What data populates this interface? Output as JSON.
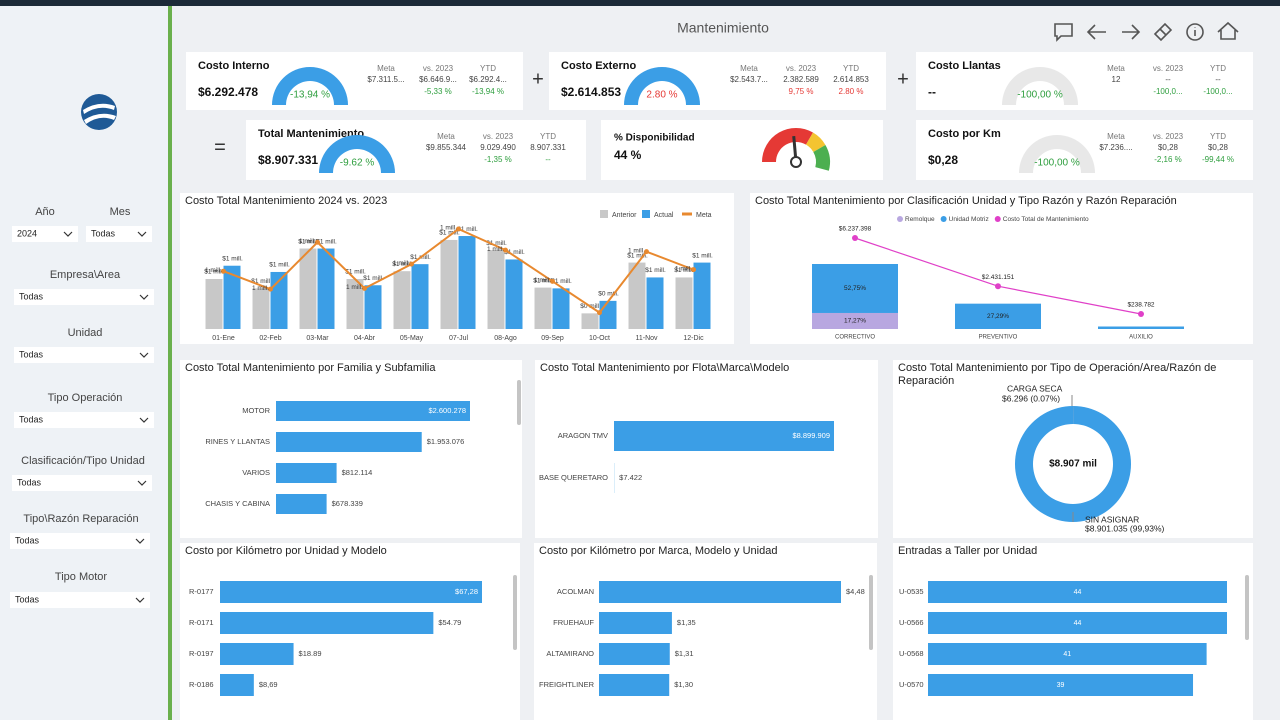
{
  "header": {
    "title": "Mantenimiento"
  },
  "filters": [
    {
      "label": "Año",
      "value": "2024"
    },
    {
      "label": "Mes",
      "value": "Todas"
    },
    {
      "label": "Empresa\\Area",
      "value": "Todas"
    },
    {
      "label": "Unidad",
      "value": "Todas"
    },
    {
      "label": "Tipo Operación",
      "value": "Todas"
    },
    {
      "label": "Clasificación/Tipo Unidad",
      "value": "Todas"
    },
    {
      "label": "Tipo\\Razón Reparación",
      "value": "Todas"
    },
    {
      "label": "Tipo Motor",
      "value": "Todas"
    }
  ],
  "kpi_columns": [
    "Meta",
    "vs. 2023",
    "YTD"
  ],
  "operators": [
    "+",
    "+",
    "="
  ],
  "kpis": [
    {
      "title": "Costo Interno",
      "value": "$6.292.478",
      "gauge": "-13,94 %",
      "gauge_color": "#3b9ee6",
      "color": "#2e9e3e",
      "meta": "$7.311.5...",
      "vs_2023": "$6.646.9...",
      "ytd": "$6.292.4...",
      "vs_2023_pct": "-5,33 %",
      "ytd_pct": "-13,94 %"
    },
    {
      "title": "Costo Externo",
      "value": "$2.614.853",
      "gauge": "2.80 %",
      "gauge_color": "#3b9ee6",
      "color": "#e53935",
      "meta": "$2.543.7...",
      "vs_2023": "2.382.589",
      "ytd": "2.614.853",
      "vs_2023_pct": "9,75 %",
      "ytd_pct": "2.80 %"
    },
    {
      "title": "Costo Llantas",
      "value": "--",
      "gauge": "-100,00 %",
      "gauge_color": "#e8e8e8",
      "color": "#2e9e3e",
      "meta": "12",
      "vs_2023": "--",
      "ytd": "--",
      "vs_2023_pct": "-100,0...",
      "ytd_pct": "-100,0..."
    },
    {
      "title": "Total Mantenimiento",
      "value": "$8.907.331",
      "gauge": "-9.62 %",
      "gauge_color": "#3b9ee6",
      "color": "#2e9e3e",
      "meta": "$9.855.344",
      "vs_2023": "9.029.490",
      "ytd": "8.907.331",
      "vs_2023_pct": "-1,35 %",
      "ytd_pct": "--"
    },
    {
      "title": "% Disponibilidad",
      "value": "44 %"
    },
    {
      "title": "Costo por Km",
      "value": "$0,28",
      "gauge": "-100,00 %",
      "gauge_color": "#e8e8e8",
      "color": "#2e9e3e",
      "meta": "$7.236....",
      "vs_2023": "$0,28",
      "ytd": "$0,28",
      "vs_2023_pct": "-2,16 %",
      "ytd_pct": "-99,44 %"
    }
  ],
  "chart_data": [
    {
      "type": "bar",
      "title": "Costo Total Mantenimiento 2024 vs. 2023",
      "categories": [
        "01-Ene",
        "02-Feb",
        "03-Mar",
        "04-Abr",
        "05-May",
        "07-Jul",
        "08-Ago",
        "09-Sep",
        "10-Oct",
        "11-Nov",
        "12-Dic"
      ],
      "series": [
        {
          "name": "Anterior",
          "color": "#c8c8c8",
          "values": [
            0.64,
            0.52,
            1.03,
            0.64,
            0.74,
            1.14,
            1.01,
            0.53,
            0.2,
            0.85,
            0.66
          ],
          "value_labels": [
            "$1 mill.",
            "$1 mill.",
            "$1 mill.",
            "$1 mill.",
            "$1 mill.",
            "$1 mill.",
            "$1 mill.",
            "$1 mill.",
            "$0 mill.",
            "$1 mill.",
            "$1 mill."
          ]
        },
        {
          "name": "Actual",
          "color": "#3b9ee6",
          "values": [
            0.81,
            0.73,
            1.03,
            0.56,
            0.83,
            1.19,
            0.89,
            0.52,
            0.36,
            0.66,
            0.85
          ],
          "value_labels": [
            "$1 mill.",
            "$1 mill.",
            "$1 mill.",
            "$1 mill.",
            "$1 mill.",
            "$1 mill.",
            "$1 mill.",
            "$1 mill.",
            "$0 mill.",
            "$1 mill.",
            "$1 mill."
          ]
        },
        {
          "name": "Meta",
          "type": "line",
          "color": "#e8892f",
          "values": [
            0.74,
            0.51,
            1.11,
            0.52,
            0.83,
            1.28,
            1.01,
            0.61,
            0.21,
            0.99,
            0.76
          ],
          "value_labels": [
            "1 mill.",
            "1 mill.",
            "1 mill.",
            "1 mill.",
            "1 mill.",
            "1 mill.",
            "1 mill.",
            "1 mill.",
            null,
            "1 mill.",
            "1 mill."
          ]
        }
      ]
    },
    {
      "type": "bar",
      "stacked": true,
      "title": "Costo Total Mantenimiento por Clasificación Unidad y Tipo Razón y Razón Reparación",
      "categories": [
        "CORRECTIVO",
        "PREVENTIVO",
        "AUXILIO"
      ],
      "series": [
        {
          "name": "Remolque",
          "color": "#b8a7e0",
          "values": [
            17.27,
            null,
            null
          ],
          "value_labels": [
            "17,27%",
            null,
            null
          ]
        },
        {
          "name": "Unidad Motriz",
          "color": "#3b9ee6",
          "values": [
            52.75,
            27.29,
            2.68
          ],
          "value_labels": [
            "52,75%",
            "27,29%",
            null
          ]
        },
        {
          "name": "Costo Total de Mantenimiento",
          "type": "line",
          "axis": "y2",
          "color": "#e040c8",
          "values": [
            6237398,
            2431151,
            238782
          ],
          "value_labels": [
            "$6.237.398",
            "$2.431.151",
            "$238.782"
          ]
        }
      ]
    },
    {
      "type": "bar",
      "horizontal": true,
      "title": "Costo Total Mantenimiento por Familia y Subfamilia",
      "color": "#3b9ee6",
      "categories": [
        "MOTOR",
        "RINES Y LLANTAS",
        "VARIOS",
        "CHASIS Y CABINA"
      ],
      "values": [
        2600278,
        1953076,
        812114,
        678339
      ],
      "value_labels": [
        "$2.600.278",
        "$1.953.076",
        "$812.114",
        "$678.339"
      ]
    },
    {
      "type": "bar",
      "horizontal": true,
      "title": "Costo Total Mantenimiento por Flota\\Marca\\Modelo",
      "color": "#3b9ee6",
      "categories": [
        "ARAGON TMV",
        "BASE QUERETARO"
      ],
      "values": [
        8899909,
        7422
      ],
      "value_labels": [
        "$8.899.909",
        "$7.422"
      ]
    },
    {
      "type": "pie",
      "donut": true,
      "title": "Costo Total Mantenimiento por Tipo de Operación/Area/Razón de Reparación",
      "categories": [
        "CARGA SECA",
        "SIN ASIGNAR"
      ],
      "values": [
        6296,
        8901035
      ],
      "value_labels": [
        "$6.296 (0.07%)",
        "$8.901.035 (99,93%)"
      ],
      "colors": [
        "#1a4f8a",
        "#3b9ee6"
      ],
      "center_label": "$8.907 mil"
    },
    {
      "type": "bar",
      "horizontal": true,
      "title": "Costo por Kilómetro por Unidad y Modelo",
      "color": "#3b9ee6",
      "categories": [
        "R-0177",
        "R-0171",
        "R-0197",
        "R-0186"
      ],
      "values": [
        67.28,
        54.79,
        18.89,
        8.69
      ],
      "value_labels": [
        "$67,28",
        "$54.79",
        "$18.89",
        "$8,69"
      ]
    },
    {
      "type": "bar",
      "horizontal": true,
      "title": "Costo por Kilómetro por Marca, Modelo y Unidad",
      "color": "#3b9ee6",
      "categories": [
        "ACOLMAN",
        "FRUEHAUF",
        "ALTAMIRANO",
        "FREIGHTLINER"
      ],
      "values": [
        4.48,
        1.35,
        1.31,
        1.3
      ],
      "value_labels": [
        "$4,48",
        "$1,35",
        "$1,31",
        "$1,30"
      ]
    },
    {
      "type": "bar",
      "horizontal": true,
      "title": "Entradas a Taller por Unidad",
      "color": "#3b9ee6",
      "value_label_position": "center",
      "categories": [
        "U-0535",
        "U-0566",
        "U-0568",
        "U-0570"
      ],
      "values": [
        44,
        44,
        41,
        39
      ]
    }
  ]
}
